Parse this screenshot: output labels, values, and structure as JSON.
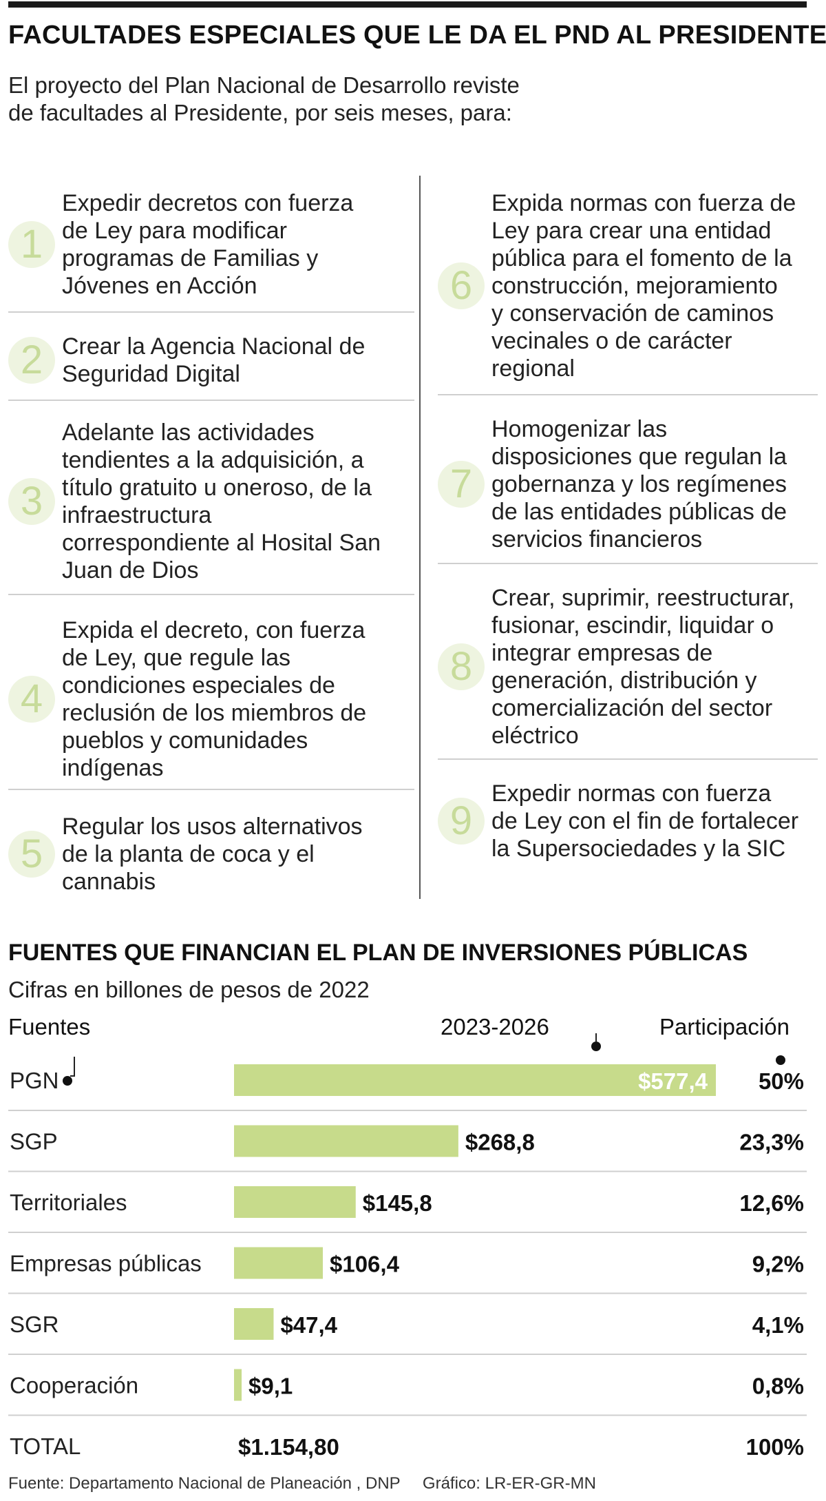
{
  "header": {
    "title": "FACULTADES ESPECIALES QUE LE DA EL PND AL PRESIDENTE",
    "subtitle_line1": "El proyecto del Plan Nacional de Desarrollo reviste",
    "subtitle_line2": "de facultades al Presidente, por seis meses, para:"
  },
  "facultades": [
    {
      "num": "1",
      "lines": [
        "Expedir decretos con fuerza",
        "de Ley para modificar",
        "programas de Familias y",
        "Jóvenes en Acción"
      ]
    },
    {
      "num": "2",
      "lines": [
        "Crear la Agencia Nacional de",
        "Seguridad Digital"
      ]
    },
    {
      "num": "3",
      "lines": [
        "Adelante las actividades",
        "tendientes a la adquisición, a",
        "título gratuito u oneroso, de la",
        "infraestructura",
        "correspondiente al Hosital San",
        "Juan de Dios"
      ]
    },
    {
      "num": "4",
      "lines": [
        "Expida el decreto, con fuerza",
        "de Ley, que regule las",
        "condiciones especiales de",
        "reclusión de los miembros de",
        "pueblos y comunidades",
        "indígenas"
      ]
    },
    {
      "num": "5",
      "lines": [
        "Regular los usos alternativos",
        "de la planta de coca y el",
        "cannabis"
      ]
    },
    {
      "num": "6",
      "lines": [
        "Expida normas con fuerza de",
        "Ley para crear una entidad",
        "pública para el fomento de la",
        "construcción, mejoramiento",
        "y conservación de caminos",
        "vecinales o de carácter",
        "regional"
      ]
    },
    {
      "num": "7",
      "lines": [
        "Homogenizar las",
        "disposiciones que regulan la",
        "gobernanza y los regímenes",
        "de las entidades públicas de",
        "servicios financieros"
      ]
    },
    {
      "num": "8",
      "lines": [
        "Crear, suprimir, reestructurar,",
        "fusionar, escindir, liquidar o",
        "integrar empresas de",
        "generación, distribución y",
        "comercialización del sector",
        "eléctrico"
      ]
    },
    {
      "num": "9",
      "lines": [
        "Expedir normas con fuerza",
        "de Ley con el fin de fortalecer",
        "la Supersociedades y la SIC"
      ]
    }
  ],
  "chart_data": {
    "type": "bar",
    "orientation": "horizontal",
    "title": "FUENTES QUE FINANCIAN EL PLAN DE INVERSIONES PÚBLICAS",
    "subtitle": "Cifras en billones de pesos de 2022",
    "col_fuentes": "Fuentes",
    "col_periodo": "2023-2026",
    "col_participacion": "Participación",
    "categories": [
      "PGN",
      "SGP",
      "Territoriales",
      "Empresas públicas",
      "SGR",
      "Cooperación"
    ],
    "values": [
      577.4,
      268.8,
      145.8,
      106.4,
      47.4,
      9.1
    ],
    "value_labels": [
      "$577,4",
      "$268,8",
      "$145,8",
      "$106,4",
      "$47,4",
      "$9,1"
    ],
    "shares": [
      "50%",
      "23,3%",
      "12,6%",
      "9,2%",
      "4,1%",
      "0,8%"
    ],
    "total_label": "TOTAL",
    "total_value": "$1.154,80",
    "total_share": "100%",
    "bar_color": "#c7db8b",
    "xlim": [
      0,
      577.4
    ]
  },
  "footer": {
    "source": "Fuente: Departamento Nacional de Planeación , DNP",
    "credit": "Gráfico: LR-ER-GR-MN"
  }
}
